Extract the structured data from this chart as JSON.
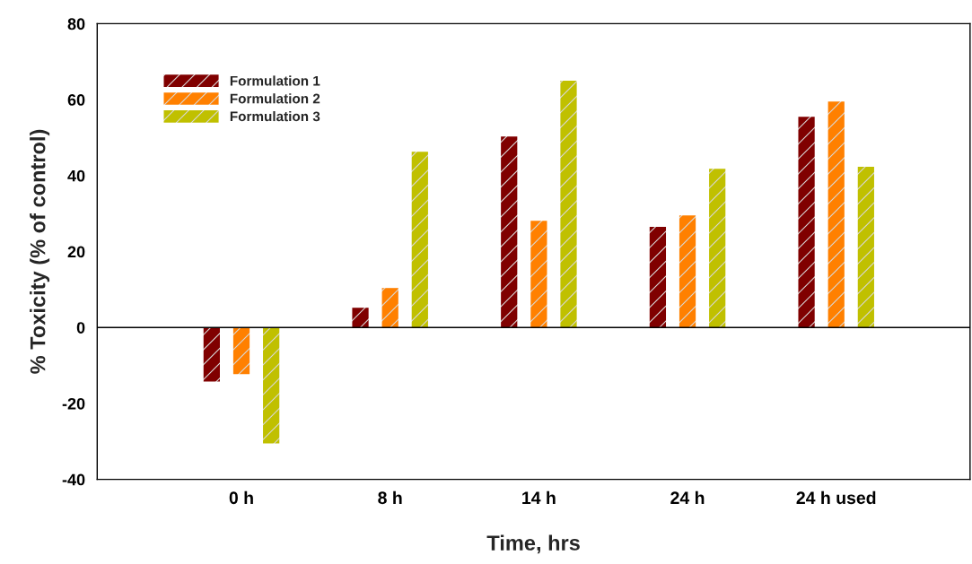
{
  "chart_data": {
    "type": "bar",
    "xlabel": "Time, hrs",
    "ylabel": "% Toxicity (% of control)",
    "categories": [
      "0 h",
      "8 h",
      "14 h",
      "24 h",
      "24 h used"
    ],
    "series": [
      {
        "name": "Formulation 1",
        "color": "#800000",
        "values": [
          -14.2,
          5.2,
          50.3,
          26.5,
          55.5
        ]
      },
      {
        "name": "Formulation 2",
        "color": "#ff8000",
        "values": [
          -12.3,
          10.4,
          28.1,
          29.5,
          59.5
        ]
      },
      {
        "name": "Formulation 3",
        "color": "#c0c000",
        "values": [
          -30.5,
          46.3,
          65,
          41.8,
          42.3
        ]
      }
    ],
    "ylim": [
      -40,
      80
    ],
    "yticks": [
      -40,
      -20,
      0,
      20,
      40,
      60,
      80
    ],
    "ref_lines": [
      {
        "axis": "y",
        "value": 0,
        "color": "#000000",
        "line_style": "solid"
      }
    ],
    "grid": false,
    "legend": "top left"
  }
}
